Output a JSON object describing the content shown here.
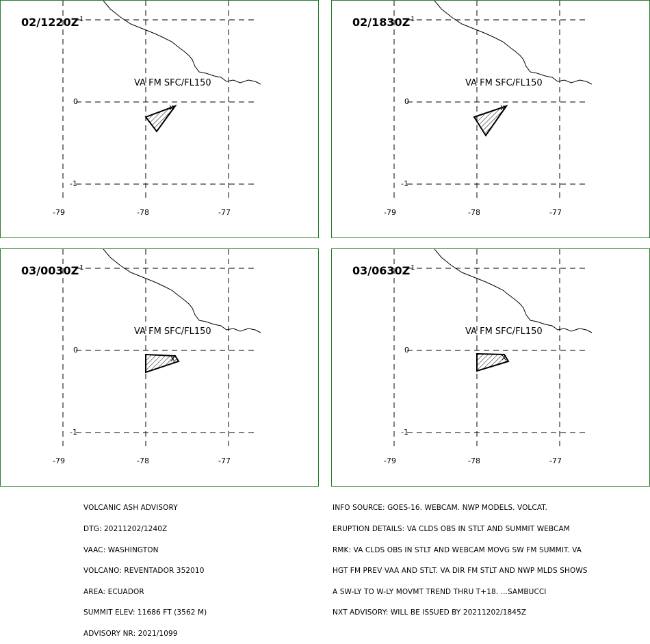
{
  "panels": [
    {
      "time": "02/1220Z",
      "sup": "1",
      "ash_label": "VA FM SFC/FL150"
    },
    {
      "time": "02/1830Z",
      "sup": "1",
      "ash_label": "VA FM SFC/FL150"
    },
    {
      "time": "03/0030Z",
      "sup": "1",
      "ash_label": "VA FM SFC/FL150"
    },
    {
      "time": "03/0630Z",
      "sup": "1",
      "ash_label": "VA FM SFC/FL150"
    }
  ],
  "axis": {
    "lon_labels": [
      "-79",
      "-78",
      "-77"
    ],
    "lat_labels": [
      "0",
      "-1"
    ]
  },
  "colors": {
    "panel_border": "#2a7d2a",
    "line": "#000000"
  },
  "advisory_left": [
    "VOLCANIC ASH ADVISORY",
    "DTG: 20211202/1240Z",
    "VAAC: WASHINGTON",
    "VOLCANO: REVENTADOR 352010",
    "AREA: ECUADOR",
    "SUMMIT ELEV: 11686 FT (3562 M)",
    "ADVISORY NR: 2021/1099"
  ],
  "advisory_right": [
    "INFO SOURCE: GOES-16. WEBCAM. NWP MODELS. VOLCAT.",
    "ERUPTION DETAILS: VA CLDS OBS IN STLT AND SUMMIT WEBCAM",
    "RMK: VA CLDS OBS IN STLT AND WEBCAM MOVG SW FM SUMMIT. VA",
    "HGT FM PREV VAA AND STLT. VA DIR FM STLT AND NWP MLDS SHOWS",
    "A SW-LY TO W-LY MOVMT TREND THRU T+18. ...SAMBUCCI",
    "NXT ADVISORY: WILL BE ISSUED BY 20211202/1845Z"
  ]
}
